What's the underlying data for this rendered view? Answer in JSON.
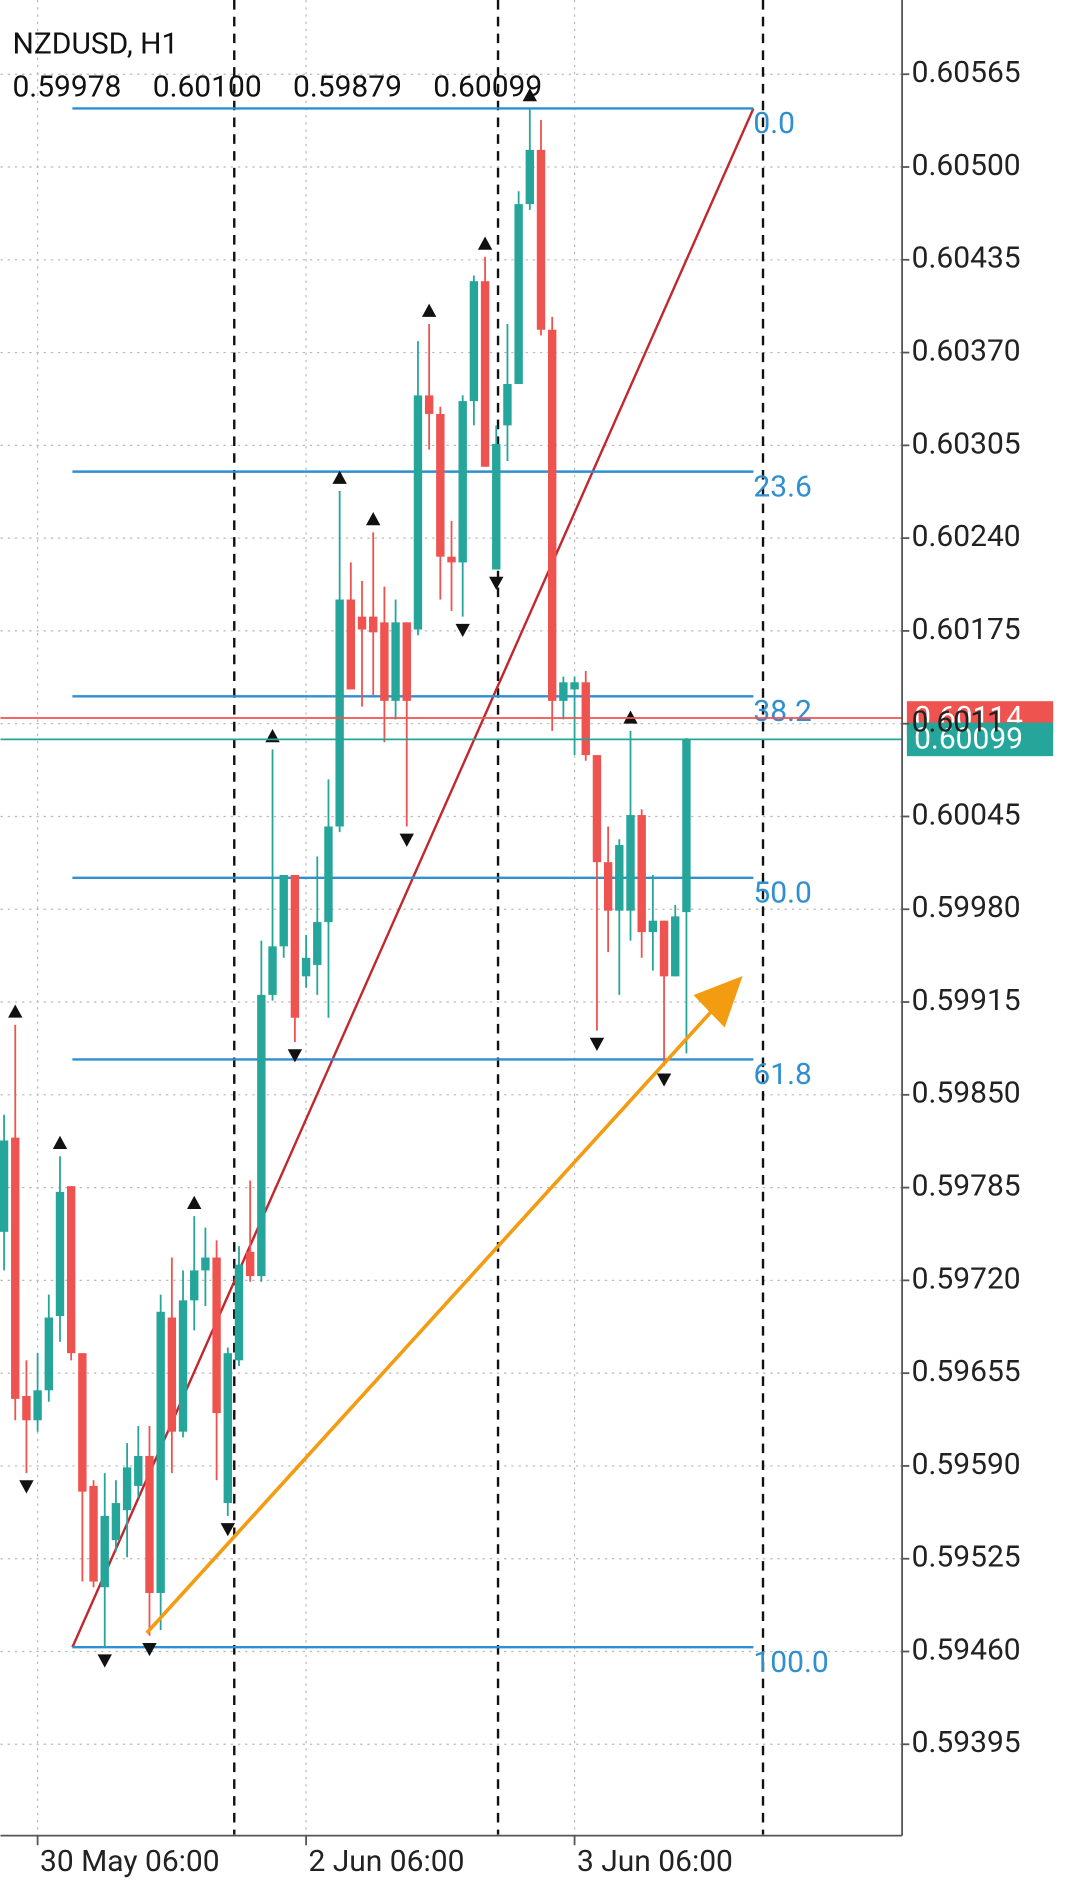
{
  "chart_data": {
    "type": "candlestick",
    "header": {
      "symbol": "NZDUSD, H1",
      "ohlc": [
        "0.59978",
        "0.60100",
        "0.59879",
        "0.60099"
      ]
    },
    "up_color": "#26a69a",
    "down_color": "#ef5350",
    "ylim": [
      0.59331,
      0.60617
    ],
    "yticks": [
      0.60565,
      {
        "value": 0.605,
        "label": "0.60500"
      },
      0.60435,
      {
        "value": 0.6037,
        "label": "0.60370"
      },
      0.60305,
      {
        "value": 0.6024,
        "label": "0.60240"
      },
      0.60175,
      0.6011,
      0.60045,
      {
        "value": 0.5998,
        "label": "0.59980"
      },
      0.59915,
      {
        "value": 0.5985,
        "label": "0.59850"
      },
      0.59785,
      {
        "value": 0.5972,
        "label": "0.59720"
      },
      0.59655,
      {
        "value": 0.5959,
        "label": "0.59590"
      },
      0.59525,
      {
        "value": 0.5946,
        "label": "0.59460"
      },
      0.59395
    ],
    "grid": true,
    "categories": [
      null,
      null,
      null,
      "30 May 06:00",
      null,
      null,
      null,
      null,
      null,
      null,
      null,
      null,
      null,
      null,
      null,
      null,
      null,
      null,
      null,
      null,
      null,
      null,
      null,
      null,
      null,
      null,
      null,
      "2 Jun 06:00",
      null,
      null,
      null,
      null,
      null,
      null,
      null,
      null,
      null,
      null,
      null,
      null,
      null,
      null,
      null,
      null,
      null,
      null,
      null,
      null,
      null,
      null,
      null,
      "3 Jun 06:00",
      null,
      null,
      null,
      null,
      null,
      null,
      null,
      null,
      null,
      null
    ],
    "ohlc": [
      [
        0.59754,
        0.59836,
        0.59727,
        0.59818
      ],
      [
        0.5982,
        0.59899,
        0.59622,
        0.59637
      ],
      [
        0.59639,
        0.59664,
        0.59585,
        0.59622
      ],
      [
        0.59622,
        0.59669,
        0.59614,
        0.59643
      ],
      [
        0.59643,
        0.5971,
        0.59635,
        0.59694
      ],
      [
        0.59695,
        0.59807,
        0.59677,
        0.59782
      ],
      [
        0.59786,
        0.59786,
        0.59664,
        0.59669
      ],
      [
        0.59669,
        0.59669,
        0.59509,
        0.59572
      ],
      [
        0.59576,
        0.5958,
        0.59505,
        0.59509
      ],
      [
        0.59505,
        0.59585,
        0.59463,
        0.59555
      ],
      [
        0.59538,
        0.5958,
        0.5953,
        0.59564
      ],
      [
        0.59559,
        0.59606,
        0.59526,
        0.59589
      ],
      [
        0.59576,
        0.59618,
        0.59568,
        0.59597
      ],
      [
        0.59597,
        0.59618,
        0.59471,
        0.59501
      ],
      [
        0.59501,
        0.5971,
        0.59475,
        0.59698
      ],
      [
        0.59694,
        0.59736,
        0.59585,
        0.59614
      ],
      [
        0.59614,
        0.59727,
        0.5961,
        0.59706
      ],
      [
        0.59706,
        0.59765,
        0.59685,
        0.59727
      ],
      [
        0.59727,
        0.59757,
        0.59702,
        0.59736
      ],
      [
        0.59736,
        0.59748,
        0.5958,
        0.59627
      ],
      [
        0.59564,
        0.59673,
        0.59555,
        0.59669
      ],
      [
        0.59664,
        0.59744,
        0.5966,
        0.59731
      ],
      [
        0.5974,
        0.5979,
        0.59719,
        0.59723
      ],
      [
        0.59723,
        0.59958,
        0.59719,
        0.5992
      ],
      [
        0.5992,
        0.60092,
        0.59916,
        0.59954
      ],
      [
        0.59954,
        0.60004,
        0.59946,
        0.60004
      ],
      [
        0.60004,
        0.60004,
        0.59887,
        0.59904
      ],
      [
        0.59933,
        0.59962,
        0.59925,
        0.59946
      ],
      [
        0.59941,
        0.60017,
        0.5992,
        0.59971
      ],
      [
        0.59971,
        0.60071,
        0.59904,
        0.60038
      ],
      [
        0.60038,
        0.60273,
        0.60034,
        0.60197
      ],
      [
        0.60197,
        0.60223,
        0.60134,
        0.60134
      ],
      [
        0.60185,
        0.6021,
        0.60122,
        0.60176
      ],
      [
        0.60185,
        0.60244,
        0.6013,
        0.60174
      ],
      [
        0.60181,
        0.60206,
        0.60097,
        0.60126
      ],
      [
        0.60126,
        0.60197,
        0.60113,
        0.60181
      ],
      [
        0.60181,
        0.60181,
        0.60038,
        0.60126
      ],
      [
        0.60176,
        0.60378,
        0.60172,
        0.6034
      ],
      [
        0.6034,
        0.6039,
        0.60302,
        0.60327
      ],
      [
        0.60327,
        0.60332,
        0.60197,
        0.60227
      ],
      [
        0.60227,
        0.60252,
        0.60189,
        0.60223
      ],
      [
        0.60223,
        0.6034,
        0.60185,
        0.60336
      ],
      [
        0.60336,
        0.60424,
        0.60319,
        0.6042
      ],
      [
        0.6042,
        0.60437,
        0.6029,
        0.6029
      ],
      [
        0.60218,
        0.60319,
        0.60218,
        0.60306
      ],
      [
        0.60319,
        0.6039,
        0.60294,
        0.60348
      ],
      [
        0.60348,
        0.60483,
        0.60348,
        0.60474
      ],
      [
        0.60474,
        0.60541,
        0.6047,
        0.60512
      ],
      [
        0.60512,
        0.60533,
        0.60382,
        0.60386
      ],
      [
        0.60386,
        0.60395,
        0.60105,
        0.60126
      ],
      [
        0.60126,
        0.60143,
        0.60113,
        0.60139
      ],
      [
        0.60134,
        0.60143,
        0.60088,
        0.60139
      ],
      [
        0.60139,
        0.60147,
        0.60084,
        0.60088
      ],
      [
        0.60088,
        0.60088,
        0.59895,
        0.60013
      ],
      [
        0.60013,
        0.60038,
        0.5995,
        0.59979
      ],
      [
        0.59979,
        0.60029,
        0.5992,
        0.60025
      ],
      [
        0.59979,
        0.60105,
        0.59958,
        0.60046
      ],
      [
        0.60046,
        0.6005,
        0.59946,
        0.59964
      ],
      [
        0.59964,
        0.60004,
        0.59937,
        0.59972
      ],
      [
        0.59972,
        0.59972,
        0.5987,
        0.59933
      ],
      [
        0.59933,
        0.59983,
        0.59933,
        0.59975
      ],
      [
        0.59978,
        0.601,
        0.59879,
        0.60099
      ]
    ],
    "fractals_up": [
      1,
      5,
      17,
      24,
      30,
      33,
      38,
      43,
      47,
      56
    ],
    "fractals_down": [
      2,
      9,
      13,
      20,
      26,
      36,
      41,
      44,
      53,
      59
    ],
    "fibonacci": {
      "high": 0.60541,
      "low": 0.59463,
      "levels": [
        0,
        23.6,
        38.2,
        50,
        61.8,
        100
      ],
      "level_labels": [
        "0.0",
        "23.6",
        "38.2",
        "50.0",
        "61.8",
        "100.0"
      ],
      "color": "#2f8fd0",
      "trend_color": "#c0282d"
    },
    "ask": {
      "value": 0.60114,
      "label": "0.60114",
      "color": "#ef5350"
    },
    "bid": {
      "value": 0.60099,
      "label": "0.60099",
      "color": "#26a69a"
    }
  }
}
